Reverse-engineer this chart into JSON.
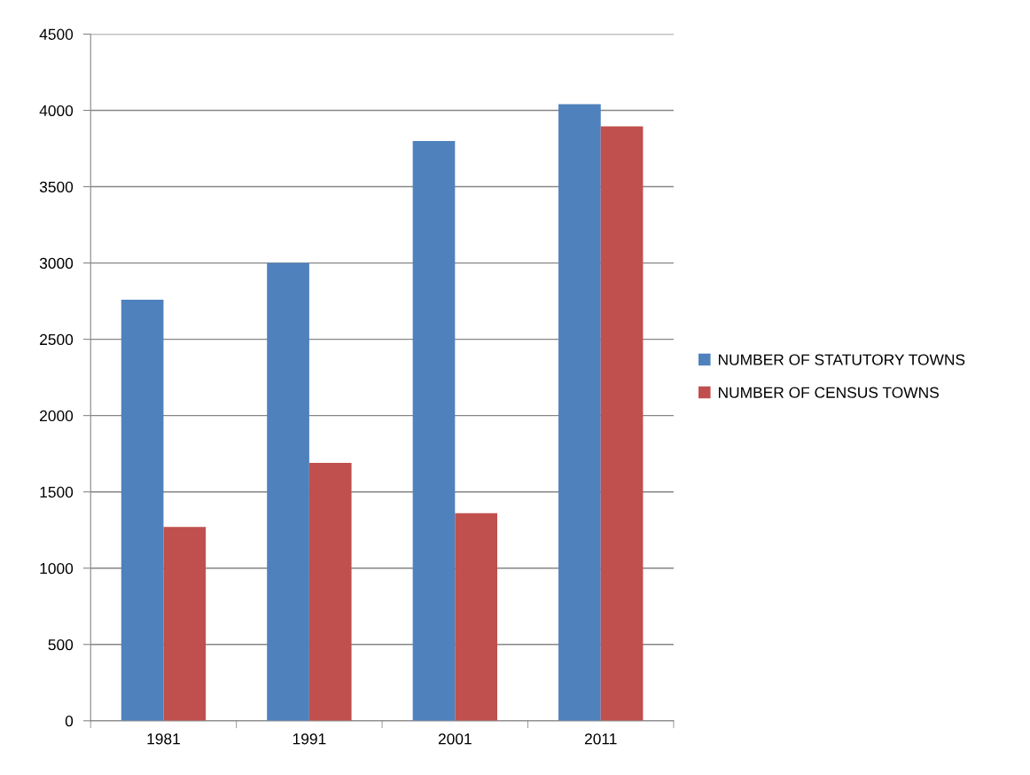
{
  "chart_data": {
    "type": "bar",
    "categories": [
      "1981",
      "1991",
      "2001",
      "2011"
    ],
    "series": [
      {
        "name": "NUMBER OF STATUTORY TOWNS",
        "color": "#4f81bd",
        "values": [
          2760,
          3000,
          3800,
          4040
        ]
      },
      {
        "name": "NUMBER OF CENSUS TOWNS",
        "color": "#c0504d",
        "values": [
          1270,
          1690,
          1360,
          3895
        ]
      }
    ],
    "ylim": [
      0,
      4500
    ],
    "yticks": [
      0,
      500,
      1000,
      1500,
      2000,
      2500,
      3000,
      3500,
      4000,
      4500
    ],
    "grid": "y",
    "legend": "right"
  }
}
